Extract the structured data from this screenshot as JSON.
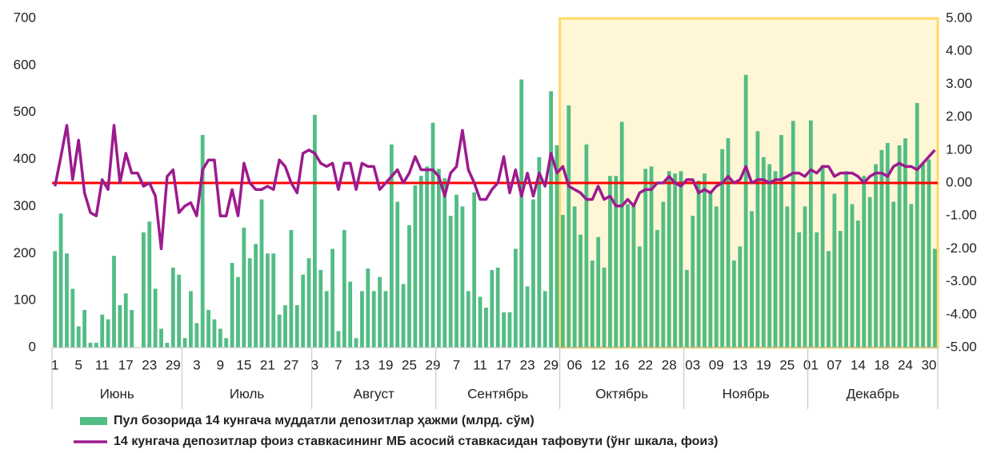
{
  "chart_data": {
    "type": "bar",
    "categories": [
      "1",
      null,
      null,
      null,
      "5",
      null,
      null,
      null,
      "11",
      null,
      null,
      null,
      "17",
      null,
      null,
      null,
      "23",
      null,
      null,
      null,
      "29",
      null,
      null,
      null,
      "3",
      null,
      null,
      null,
      "9",
      null,
      null,
      null,
      "15",
      null,
      null,
      null,
      "21",
      null,
      null,
      null,
      "27",
      null,
      null,
      null,
      "3",
      null,
      null,
      null,
      "7",
      null,
      null,
      null,
      "13",
      null,
      null,
      null,
      "19",
      null,
      null,
      null,
      "25",
      null,
      null,
      null,
      "29",
      null,
      null,
      null,
      "7",
      null,
      null,
      null,
      "11",
      null,
      null,
      null,
      "17",
      null,
      null,
      null,
      "23",
      null,
      null,
      null,
      "29",
      null,
      null,
      null,
      "06",
      null,
      null,
      null,
      "12",
      null,
      null,
      null,
      "16",
      null,
      null,
      null,
      "22",
      null,
      null,
      null,
      "28",
      null,
      null,
      null,
      "03",
      null,
      null,
      null,
      "09",
      null,
      null,
      null,
      "13",
      null,
      null,
      null,
      "19",
      null,
      null,
      null,
      "25",
      null,
      null,
      null,
      "01",
      null,
      null,
      null,
      "07",
      null,
      null,
      null,
      "14",
      null,
      null,
      null,
      "18",
      null,
      null,
      null,
      "24",
      null,
      null,
      null,
      "30",
      null
    ],
    "month_groups": [
      {
        "label": "Июнь",
        "count": 22
      },
      {
        "label": "Июль",
        "count": 22
      },
      {
        "label": "Август",
        "count": 21
      },
      {
        "label": "Сентябрь",
        "count": 21
      },
      {
        "label": "Октябрь",
        "count": 21
      },
      {
        "label": "Ноябрь",
        "count": 21
      },
      {
        "label": "Декабрь",
        "count": 22
      }
    ],
    "series": [
      {
        "name": "Пул бозорида 14 кунгача муддатли депозитлар ҳажми (млрд. сўм)",
        "type": "bar",
        "color": "#52bd84",
        "values": [
          205,
          285,
          200,
          125,
          45,
          80,
          10,
          10,
          70,
          60,
          195,
          90,
          115,
          80,
          0,
          245,
          268,
          125,
          40,
          10,
          170,
          155,
          20,
          120,
          52,
          452,
          80,
          60,
          40,
          20,
          180,
          150,
          255,
          190,
          220,
          315,
          200,
          200,
          70,
          90,
          250,
          90,
          155,
          190,
          495,
          165,
          120,
          210,
          35,
          250,
          140,
          20,
          120,
          168,
          120,
          150,
          120,
          432,
          310,
          135,
          260,
          345,
          365,
          385,
          478,
          380,
          360,
          280,
          325,
          300,
          120,
          330,
          108,
          85,
          165,
          170,
          75,
          75,
          210,
          570,
          130,
          315,
          405,
          120,
          545,
          430,
          282,
          515,
          300,
          240,
          432,
          185,
          235,
          170,
          365,
          365,
          480,
          305,
          300,
          215,
          380,
          385,
          250,
          310,
          375,
          370,
          375,
          165,
          280,
          355,
          370,
          330,
          300,
          422,
          445,
          185,
          215,
          580,
          290,
          460,
          405,
          390,
          375,
          452,
          300,
          482,
          245,
          300,
          483,
          245,
          388,
          205,
          327,
          248,
          375,
          305,
          270,
          365,
          320,
          390,
          420,
          435,
          310,
          430,
          445,
          305,
          520,
          390,
          400,
          210
        ]
      },
      {
        "name": "14 кунгача депозитлар фоиз ставкасининг МБ асосий ставкасидан тафовути (ўнг шкала, фоиз)",
        "type": "line",
        "axis": "y2",
        "color": "#9c1b8e",
        "values": [
          -0.1,
          0.8,
          1.75,
          0.1,
          1.3,
          -0.3,
          -0.9,
          -1.0,
          0.1,
          -0.2,
          1.75,
          0.0,
          0.9,
          0.3,
          0.3,
          -0.1,
          0.0,
          -0.4,
          -2.0,
          0.2,
          0.4,
          -0.9,
          -0.7,
          -0.6,
          -1.0,
          0.4,
          0.7,
          0.7,
          -1.0,
          -1.0,
          -0.2,
          -1.0,
          0.6,
          0.0,
          -0.2,
          -0.2,
          -0.1,
          -0.2,
          0.7,
          0.5,
          0.0,
          -0.3,
          0.9,
          1.0,
          0.9,
          0.6,
          0.5,
          0.6,
          -0.2,
          0.6,
          0.6,
          -0.2,
          0.6,
          0.5,
          0.5,
          -0.2,
          0.0,
          0.2,
          0.4,
          0.0,
          0.3,
          0.8,
          0.4,
          0.4,
          0.4,
          0.2,
          -0.4,
          0.3,
          0.5,
          1.6,
          0.4,
          0.0,
          -0.5,
          -0.5,
          -0.2,
          0.0,
          0.8,
          -0.3,
          0.4,
          -0.4,
          0.3,
          -0.4,
          0.3,
          -0.1,
          0.9,
          0.3,
          0.5,
          -0.1,
          -0.2,
          -0.3,
          -0.5,
          -0.5,
          -0.1,
          -0.5,
          -0.4,
          -0.7,
          -0.7,
          -0.5,
          -0.7,
          -0.3,
          -0.2,
          -0.2,
          0.0,
          0.0,
          0.2,
          0.0,
          -0.1,
          0.1,
          0.1,
          -0.3,
          -0.2,
          -0.3,
          -0.1,
          0.0,
          0.2,
          0.0,
          0.1,
          0.5,
          0.0,
          0.1,
          0.1,
          0.0,
          0.1,
          0.1,
          0.2,
          0.3,
          0.3,
          0.2,
          0.4,
          0.3,
          0.5,
          0.5,
          0.2,
          0.3,
          0.3,
          0.3,
          0.2,
          0.0,
          0.2,
          0.3,
          0.3,
          0.2,
          0.5,
          0.6,
          0.5,
          0.5,
          0.4,
          0.6,
          0.8,
          1.0
        ]
      }
    ],
    "hline": {
      "value": 0,
      "axis": "y2",
      "color": "#ff0000"
    },
    "ylim": [
      0,
      700
    ],
    "yticks": [
      0,
      100,
      200,
      300,
      400,
      500,
      600,
      700
    ],
    "y2lim": [
      -5,
      5
    ],
    "y2ticks": [
      {
        "value": -5,
        "label": "-5.00"
      },
      {
        "value": -4,
        "label": "-4.00"
      },
      {
        "value": -3,
        "label": "-3.00"
      },
      {
        "value": -2,
        "label": "-2.00"
      },
      {
        "value": -1,
        "label": "-1.00"
      },
      {
        "value": 0,
        "label": "0.00"
      },
      {
        "value": 1,
        "label": "1.00"
      },
      {
        "value": 2,
        "label": "2.00"
      },
      {
        "value": 3,
        "label": "3.00"
      },
      {
        "value": 4,
        "label": "4.00"
      },
      {
        "value": 5,
        "label": "5.00"
      }
    ],
    "legend": "bottom-left"
  }
}
